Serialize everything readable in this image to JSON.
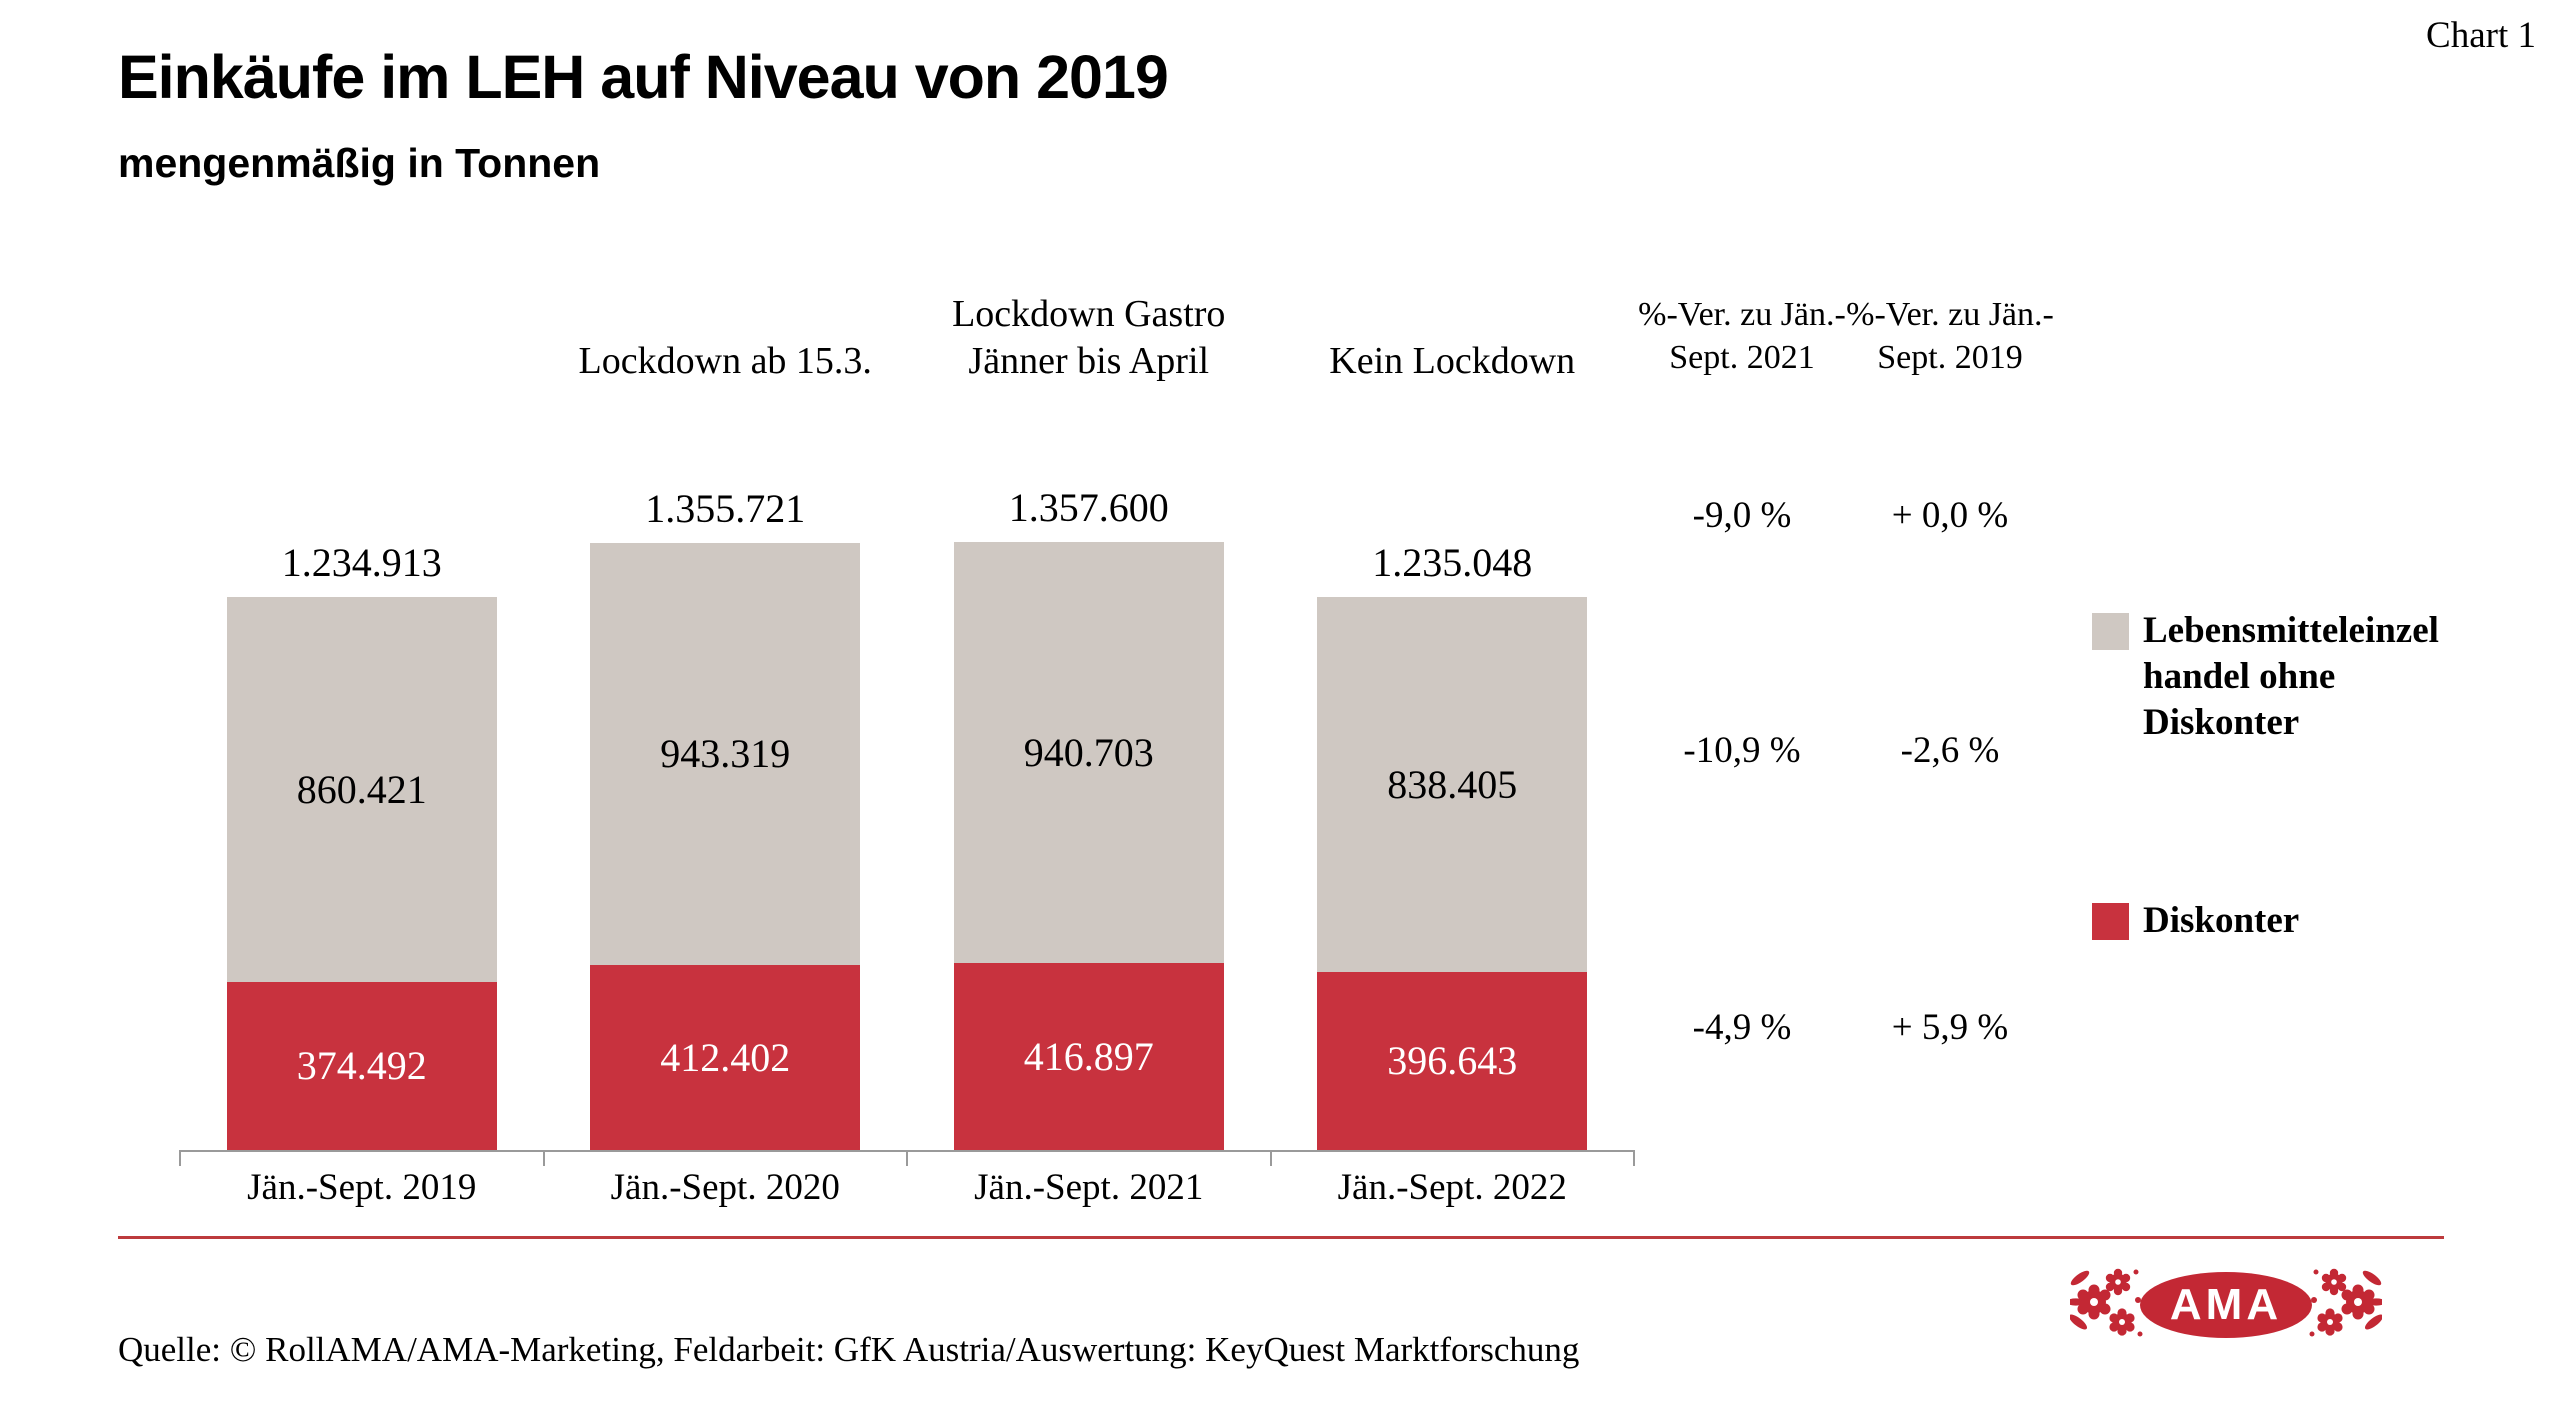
{
  "page": {
    "chart_tag": "Chart 1",
    "title": "Einkäufe im LEH auf Niveau von 2019",
    "subtitle": "mengenmäßig in Tonnen",
    "source": "Quelle: © RollAMA/AMA-Marketing, Feldarbeit: GfK Austria/Auswertung: KeyQuest Marktforschung"
  },
  "logo": {
    "text": "AMA"
  },
  "colors": {
    "diskonter_red": "#C8323E",
    "leh_gray": "#CFC8C2",
    "divider_red": "#BD3B3D",
    "axis_gray": "#9A9A9A",
    "logo_red": "#C32834"
  },
  "chart_data": {
    "type": "bar",
    "stacked": true,
    "unit": "Tonnen",
    "title": "Einkäufe im LEH auf Niveau von 2019",
    "subtitle": "mengenmäßig in Tonnen",
    "grid": false,
    "legend_position": "right",
    "categories": [
      "Jän.-Sept. 2019",
      "Jän.-Sept. 2020",
      "Jän.-Sept. 2021",
      "Jän.-Sept. 2022"
    ],
    "annotations": [
      "",
      "Lockdown ab 15.3.",
      "Lockdown Gastro Jänner bis April",
      "Kein Lockdown"
    ],
    "series": [
      {
        "name": "Diskonter",
        "color": "#C8323E",
        "values": [
          374492,
          412402,
          416897,
          396643
        ],
        "labels": [
          "374.492",
          "412.402",
          "416.897",
          "396.643"
        ]
      },
      {
        "name": "Lebensmitteleinzelhandel ohne Diskonter",
        "color": "#CFC8C2",
        "values": [
          860421,
          943319,
          940703,
          838405
        ],
        "labels": [
          "860.421",
          "943.319",
          "940.703",
          "838.405"
        ]
      }
    ],
    "totals": {
      "values": [
        1234913,
        1355721,
        1357600,
        1235048
      ],
      "labels": [
        "1.234.913",
        "1.355.721",
        "1.357.600",
        "1.235.048"
      ]
    },
    "pct_columns": [
      {
        "header": "%-Ver. zu Jän.-Sept. 2021",
        "rows": [
          "-9,0 %",
          "-10,9 %",
          "-4,9 %"
        ]
      },
      {
        "header": "%-Ver. zu Jän.-Sept. 2019",
        "rows": [
          "+ 0,0 %",
          "-2,6 %",
          "+ 5,9 %"
        ]
      }
    ],
    "legend": [
      {
        "label": "Lebensmitteleinzel handel ohne Diskonter",
        "color": "#CFC8C2"
      },
      {
        "label": "Diskonter",
        "color": "#C8323E"
      }
    ]
  }
}
